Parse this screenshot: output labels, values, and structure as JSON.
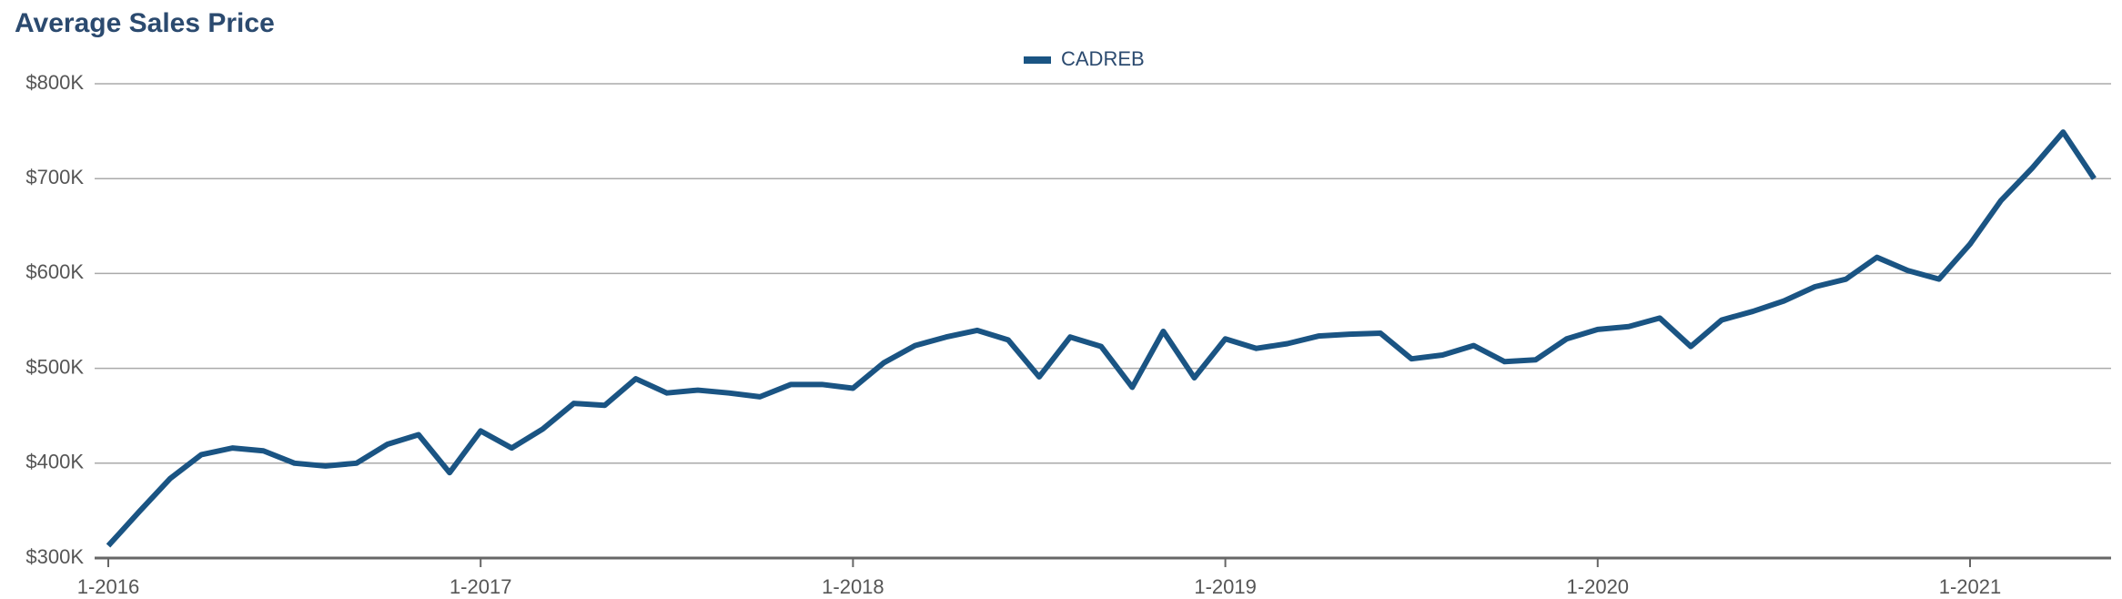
{
  "chart_data": {
    "type": "line",
    "title": "Average Sales Price",
    "categories": [
      "1-2016",
      null,
      null,
      null,
      null,
      null,
      null,
      null,
      null,
      null,
      null,
      null,
      "1-2017",
      null,
      null,
      null,
      null,
      null,
      null,
      null,
      null,
      null,
      null,
      null,
      "1-2018",
      null,
      null,
      null,
      null,
      null,
      null,
      null,
      null,
      null,
      null,
      null,
      "1-2019",
      null,
      null,
      null,
      null,
      null,
      null,
      null,
      null,
      null,
      null,
      null,
      "1-2020",
      null,
      null,
      null,
      null,
      null,
      null,
      null,
      null,
      null,
      null,
      null,
      "1-2021",
      null,
      null,
      null,
      null
    ],
    "series": [
      {
        "name": "CADREB",
        "color": "#1a5483",
        "values": [
          313000,
          349000,
          384000,
          409000,
          416000,
          413000,
          400000,
          397000,
          400000,
          420000,
          430000,
          390000,
          434000,
          416000,
          436000,
          463000,
          461000,
          489000,
          474000,
          477000,
          474000,
          470000,
          483000,
          483000,
          479000,
          506000,
          524000,
          533000,
          540000,
          530000,
          491000,
          533000,
          523000,
          480000,
          539000,
          490000,
          531000,
          521000,
          526000,
          534000,
          536000,
          537000,
          510000,
          514000,
          524000,
          507000,
          509000,
          531000,
          541000,
          544000,
          553000,
          523000,
          551000,
          560000,
          571000,
          586000,
          594000,
          617000,
          603000,
          594000,
          631000,
          677000,
          711000,
          749000,
          700000
        ]
      }
    ],
    "ylim": [
      300000,
      800000
    ],
    "yticks": [
      {
        "value": 300000,
        "label": "$300K"
      },
      {
        "value": 400000,
        "label": "$400K"
      },
      {
        "value": 500000,
        "label": "$500K"
      },
      {
        "value": 600000,
        "label": "$600K"
      },
      {
        "value": 700000,
        "label": "$700K"
      },
      {
        "value": 800000,
        "label": "$800K"
      }
    ],
    "grid": true,
    "legend": "top"
  }
}
